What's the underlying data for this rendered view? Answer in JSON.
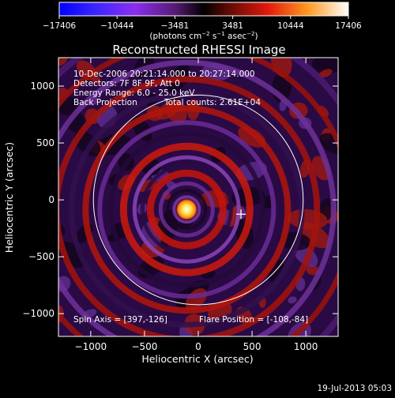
{
  "chart_data": {
    "type": "heatmap",
    "title": "Reconstructed RHESSI Image",
    "xlabel": "Heliocentric X (arcsec)",
    "ylabel": "Heliocentric Y (arcsec)",
    "xlim": [
      -1300,
      1300
    ],
    "ylim": [
      -1200,
      1250
    ],
    "x_ticks": [
      -1000,
      -500,
      0,
      500,
      1000
    ],
    "x_tick_labels": [
      "−1000",
      "−500",
      "0",
      "500",
      "1000"
    ],
    "y_ticks": [
      -1000,
      -500,
      0,
      500,
      1000
    ],
    "y_tick_labels": [
      "−1000",
      "−500",
      "0",
      "500",
      "1000"
    ],
    "colorbar": {
      "range": [
        -17406,
        17406
      ],
      "ticks": [
        -17406,
        -10444,
        -3481,
        3481,
        10444,
        17406
      ],
      "tick_labels": [
        "−17406",
        "−10444",
        "−3481",
        "3481",
        "10444",
        "17406"
      ],
      "unit_main": "(photons cm",
      "unit_exp1": "−2",
      "unit_mid": " s",
      "unit_exp2": "−1",
      "unit_tail": " asec",
      "unit_exp3": "−2",
      "unit_close": ")"
    },
    "source": {
      "x": -108,
      "y": -84,
      "peak": 17406
    },
    "marker": {
      "x": 397,
      "y": -126
    },
    "solar_disk_radius_arcsec": 975,
    "info_lines": [
      "10-Dec-2006 20:21:14.000 to 20:27:14.000",
      "Detectors: 7F 8F 9F, Att 0",
      "Energy Range: 6.0 - 25.0 keV",
      "Back Projection",
      "Total counts: 2.61E+04"
    ],
    "spin_axis_text": "Spin Axis = [397,-126]",
    "flare_position_text": "Flare Position = [-108,-84]",
    "timestamp": "19-Jul-2013 05:03",
    "colors": {
      "background": "#000000",
      "negative": "#2a0a44",
      "positive_low": "#cc1a0c",
      "positive_high": "#ffee40",
      "peak": "#ffffff",
      "disk_circle": "#ffffff"
    }
  }
}
